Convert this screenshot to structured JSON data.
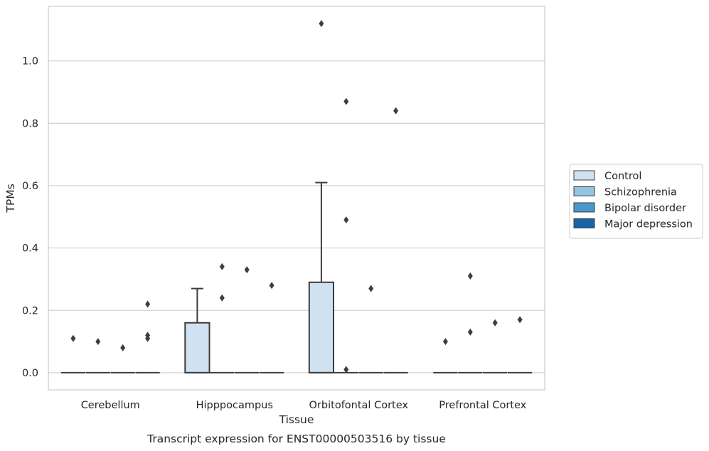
{
  "caption": "Transcript expression for ENST00000503516 by tissue",
  "chart_data": {
    "type": "box",
    "xlabel": "Tissue",
    "ylabel": "TPMs",
    "ylim": [
      -0.055,
      1.175
    ],
    "yticks": [
      0.0,
      0.2,
      0.4,
      0.6,
      0.8,
      1.0
    ],
    "ytick_labels": [
      "0.0",
      "0.2",
      "0.4",
      "0.6",
      "0.8",
      "1.0"
    ],
    "grid": "horizontal",
    "legend_position": "right",
    "categories": [
      "Cerebellum",
      "Hipppocampus",
      "Orbitofontal Cortex",
      "Prefrontal Cortex"
    ],
    "series": [
      {
        "name": "Control",
        "color": "#d0e1f2",
        "boxes": [
          {
            "q1": 0,
            "median": 0,
            "q3": 0,
            "whisker_low": 0,
            "whisker_high": 0,
            "outliers": [
              0.11
            ]
          },
          {
            "q1": 0,
            "median": 0,
            "q3": 0.16,
            "whisker_low": 0,
            "whisker_high": 0.27,
            "outliers": []
          },
          {
            "q1": 0,
            "median": 0,
            "q3": 0.29,
            "whisker_low": 0,
            "whisker_high": 0.61,
            "outliers": [
              1.12
            ]
          },
          {
            "q1": 0,
            "median": 0,
            "q3": 0,
            "whisker_low": 0,
            "whisker_high": 0,
            "outliers": [
              0.1
            ]
          }
        ]
      },
      {
        "name": "Schizophrenia",
        "color": "#94c4df",
        "boxes": [
          {
            "q1": 0,
            "median": 0,
            "q3": 0,
            "whisker_low": 0,
            "whisker_high": 0,
            "outliers": [
              0.1
            ]
          },
          {
            "q1": 0,
            "median": 0,
            "q3": 0,
            "whisker_low": 0,
            "whisker_high": 0,
            "outliers": [
              0.34,
              0.24
            ]
          },
          {
            "q1": 0,
            "median": 0,
            "q3": 0,
            "whisker_low": 0,
            "whisker_high": 0,
            "outliers": [
              0.87,
              0.49,
              0.01
            ]
          },
          {
            "q1": 0,
            "median": 0,
            "q3": 0,
            "whisker_low": 0,
            "whisker_high": 0,
            "outliers": [
              0.31,
              0.13
            ]
          }
        ]
      },
      {
        "name": "Bipolar disorder",
        "color": "#4a98c9",
        "boxes": [
          {
            "q1": 0,
            "median": 0,
            "q3": 0,
            "whisker_low": 0,
            "whisker_high": 0,
            "outliers": [
              0.08
            ]
          },
          {
            "q1": 0,
            "median": 0,
            "q3": 0,
            "whisker_low": 0,
            "whisker_high": 0,
            "outliers": [
              0.33
            ]
          },
          {
            "q1": 0,
            "median": 0,
            "q3": 0,
            "whisker_low": 0,
            "whisker_high": 0,
            "outliers": [
              0.27
            ]
          },
          {
            "q1": 0,
            "median": 0,
            "q3": 0,
            "whisker_low": 0,
            "whisker_high": 0,
            "outliers": [
              0.16
            ]
          }
        ]
      },
      {
        "name": "Major depression",
        "color": "#1764ab",
        "boxes": [
          {
            "q1": 0,
            "median": 0,
            "q3": 0,
            "whisker_low": 0,
            "whisker_high": 0,
            "outliers": [
              0.22,
              0.12,
              0.11
            ]
          },
          {
            "q1": 0,
            "median": 0,
            "q3": 0,
            "whisker_low": 0,
            "whisker_high": 0,
            "outliers": [
              0.28
            ]
          },
          {
            "q1": 0,
            "median": 0,
            "q3": 0,
            "whisker_low": 0,
            "whisker_high": 0,
            "outliers": [
              0.84
            ]
          },
          {
            "q1": 0,
            "median": 0,
            "q3": 0,
            "whisker_low": 0,
            "whisker_high": 0,
            "outliers": [
              0.17
            ]
          }
        ]
      }
    ]
  }
}
